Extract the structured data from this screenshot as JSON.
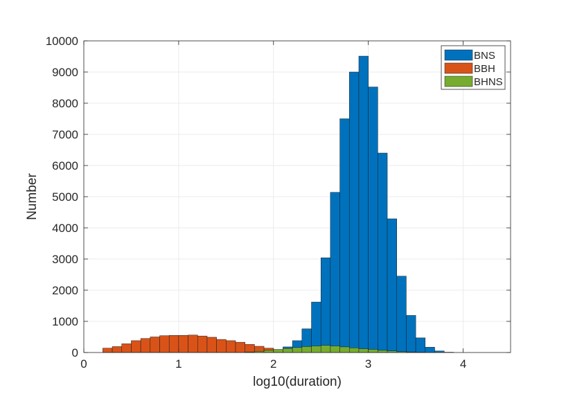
{
  "chart_data": {
    "type": "bar",
    "subtype": "overlaid-histogram",
    "title": "",
    "xlabel": "log10(duration)",
    "ylabel": "Number",
    "xlim": [
      0,
      4.5
    ],
    "ylim": [
      0,
      10000
    ],
    "x_ticks": [
      "0",
      "1",
      "2",
      "3",
      "4"
    ],
    "y_ticks": [
      "0",
      "1000",
      "2000",
      "3000",
      "4000",
      "5000",
      "6000",
      "7000",
      "8000",
      "9000",
      "10000"
    ],
    "grid": true,
    "legend_position": "top-right",
    "bin_width": 0.1,
    "series": [
      {
        "name": "BNS",
        "color": "#0072BD",
        "bin_starts": [
          2.0,
          2.1,
          2.2,
          2.3,
          2.4,
          2.5,
          2.6,
          2.7,
          2.8,
          2.9,
          3.0,
          3.1,
          3.2,
          3.3,
          3.4,
          3.5,
          3.6,
          3.7,
          3.8
        ],
        "values": [
          60,
          180,
          380,
          760,
          1620,
          3040,
          5140,
          7500,
          9000,
          9510,
          8520,
          6400,
          4290,
          2450,
          1190,
          470,
          170,
          50,
          10
        ]
      },
      {
        "name": "BBH",
        "color": "#D95319",
        "bin_starts": [
          0.2,
          0.3,
          0.4,
          0.5,
          0.6,
          0.7,
          0.8,
          0.9,
          1.0,
          1.1,
          1.2,
          1.3,
          1.4,
          1.5,
          1.6,
          1.7,
          1.8,
          1.9
        ],
        "values": [
          140,
          190,
          280,
          380,
          450,
          500,
          540,
          550,
          550,
          560,
          530,
          490,
          420,
          380,
          330,
          260,
          200,
          140
        ]
      },
      {
        "name": "BHNS",
        "color": "#77AC30",
        "bin_starts": [
          1.7,
          1.8,
          1.9,
          2.0,
          2.1,
          2.2,
          2.3,
          2.4,
          2.5,
          2.6,
          2.7,
          2.8,
          2.9,
          3.0,
          3.1,
          3.2,
          3.3,
          3.4,
          3.5,
          3.6
        ],
        "values": [
          20,
          40,
          70,
          100,
          130,
          160,
          190,
          210,
          230,
          210,
          180,
          150,
          120,
          100,
          70,
          50,
          30,
          20,
          10,
          5
        ]
      }
    ]
  }
}
